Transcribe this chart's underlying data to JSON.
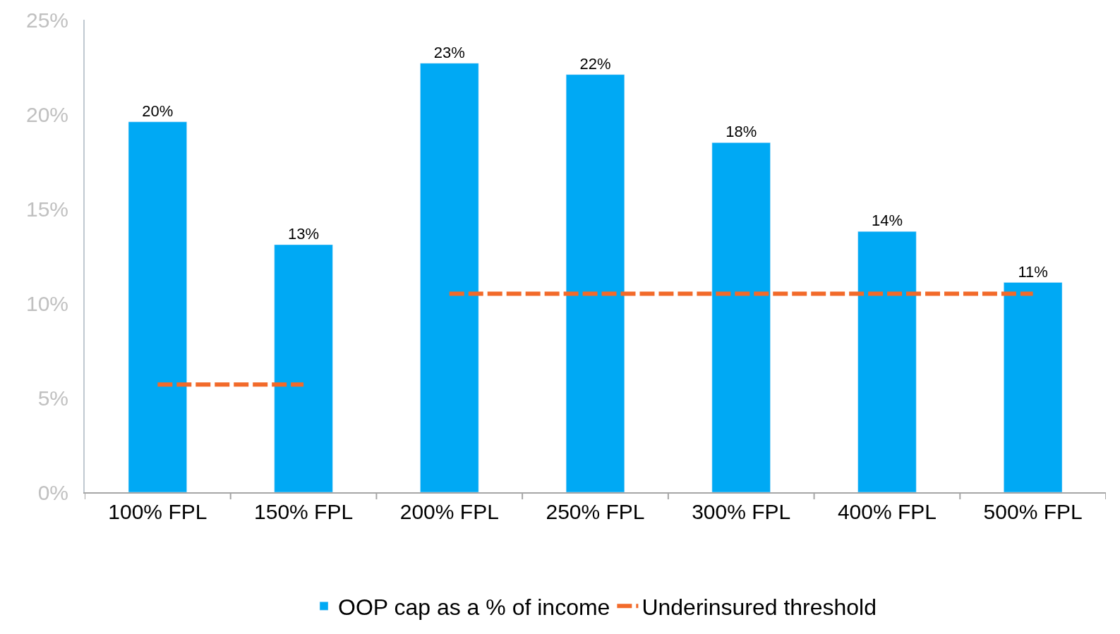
{
  "chart_data": {
    "type": "bar",
    "categories": [
      "100% FPL",
      "150% FPL",
      "200% FPL",
      "250% FPL",
      "300% FPL",
      "400% FPL",
      "500% FPL"
    ],
    "series": [
      {
        "name": "OOP cap as a % of income",
        "color": "#00a9f4",
        "values": [
          19.6,
          13.1,
          22.7,
          22.1,
          18.5,
          13.8,
          11.1
        ],
        "value_labels": [
          "20%",
          "13%",
          "23%",
          "22%",
          "18%",
          "14%",
          "11%"
        ]
      },
      {
        "name": "Underinsured threshold",
        "type": "line",
        "color": "#f26a2a",
        "line_style": "dashed",
        "values": [
          5.7,
          5.7,
          null,
          null,
          null,
          null,
          null
        ]
      },
      {
        "type": "line",
        "color": "#f26a2a",
        "line_style": "dashed",
        "values": [
          null,
          null,
          10.5,
          10.5,
          10.5,
          10.5,
          10.5
        ]
      }
    ],
    "ylim": [
      0,
      25
    ],
    "yticks": [
      {
        "value": 0,
        "label": "0%"
      },
      {
        "value": 5,
        "label": "5%"
      },
      {
        "value": 10,
        "label": "10%"
      },
      {
        "value": 15,
        "label": "15%"
      },
      {
        "value": 20,
        "label": "20%"
      },
      {
        "value": 25,
        "label": "25%"
      }
    ],
    "legend": "bottom"
  }
}
